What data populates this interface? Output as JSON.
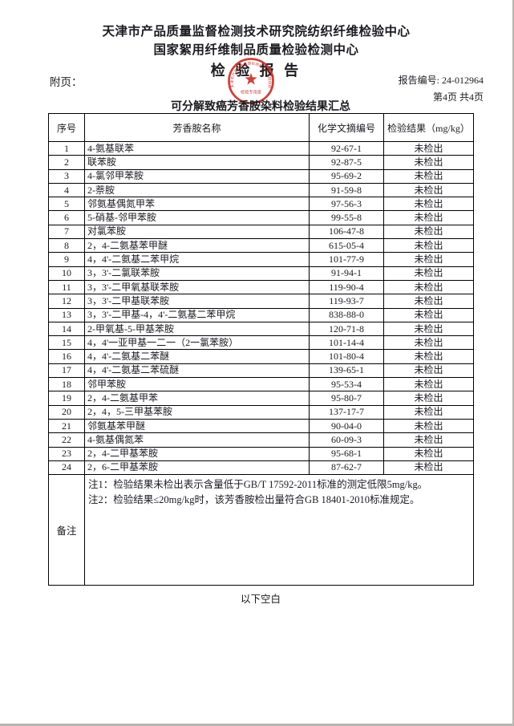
{
  "page": {
    "org_line1": "天津市产品质量监督检测技术研究院纺织纤维检验中心",
    "org_line2": "国家絮用纤维制品质量检验检测中心",
    "report_title": "检 验 报 告",
    "attachment_label": "附页：",
    "report_no_label": "报告编号: ",
    "report_no": "24-012964",
    "page_info": "第4页 共4页",
    "below_blank": "以下空白",
    "seal": {
      "color": "#c5342d",
      "ring_text": "天津市产品质量监督检测技术研究院纺织纤维检验中心",
      "bottom_text": "检验专用章"
    }
  },
  "table": {
    "title": "可分解致癌芳香胺染料检验结果汇总",
    "headers": [
      "序号",
      "芳香胺名称",
      "化学文摘编号",
      "检验结果（mg/kg）"
    ],
    "rows": [
      {
        "no": "1",
        "name": "4-氨基联苯",
        "cas": "92-67-1",
        "result": "未检出"
      },
      {
        "no": "2",
        "name": "联苯胺",
        "cas": "92-87-5",
        "result": "未检出"
      },
      {
        "no": "3",
        "name": "4-氯邻甲苯胺",
        "cas": "95-69-2",
        "result": "未检出"
      },
      {
        "no": "4",
        "name": "2-萘胺",
        "cas": "91-59-8",
        "result": "未检出"
      },
      {
        "no": "5",
        "name": "邻氨基偶氮甲苯",
        "cas": "97-56-3",
        "result": "未检出"
      },
      {
        "no": "6",
        "name": "5-硝基-邻甲苯胺",
        "cas": "99-55-8",
        "result": "未检出"
      },
      {
        "no": "7",
        "name": "对氯苯胺",
        "cas": "106-47-8",
        "result": "未检出"
      },
      {
        "no": "8",
        "name": "2，4-二氨基苯甲醚",
        "cas": "615-05-4",
        "result": "未检出"
      },
      {
        "no": "9",
        "name": "4，4'-二氨基二苯甲烷",
        "cas": "101-77-9",
        "result": "未检出"
      },
      {
        "no": "10",
        "name": "3，3'-二氯联苯胺",
        "cas": "91-94-1",
        "result": "未检出"
      },
      {
        "no": "11",
        "name": "3，3'-二甲氧基联苯胺",
        "cas": "119-90-4",
        "result": "未检出"
      },
      {
        "no": "12",
        "name": "3，3'-二甲基联苯胺",
        "cas": "119-93-7",
        "result": "未检出"
      },
      {
        "no": "13",
        "name": "3，3'-二甲基-4，4'-二氨基二苯甲烷",
        "cas": "838-88-0",
        "result": "未检出"
      },
      {
        "no": "14",
        "name": "2-甲氧基-5-甲基苯胺",
        "cas": "120-71-8",
        "result": "未检出"
      },
      {
        "no": "15",
        "name": "4，4'一亚甲基一二一（2一氯苯胺）",
        "cas": "101-14-4",
        "result": "未检出"
      },
      {
        "no": "16",
        "name": "4，4'-二氨基二苯醚",
        "cas": "101-80-4",
        "result": "未检出"
      },
      {
        "no": "17",
        "name": "4，4'-二氨基二苯硫醚",
        "cas": "139-65-1",
        "result": "未检出"
      },
      {
        "no": "18",
        "name": "邻甲苯胺",
        "cas": "95-53-4",
        "result": "未检出"
      },
      {
        "no": "19",
        "name": "2，4-二氨基甲苯",
        "cas": "95-80-7",
        "result": "未检出"
      },
      {
        "no": "20",
        "name": "2，4，5-三甲基苯胺",
        "cas": "137-17-7",
        "result": "未检出"
      },
      {
        "no": "21",
        "name": "邻氨基苯甲醚",
        "cas": "90-04-0",
        "result": "未检出"
      },
      {
        "no": "22",
        "name": "4-氨基偶氮苯",
        "cas": "60-09-3",
        "result": "未检出"
      },
      {
        "no": "23",
        "name": "2，4-二甲基苯胺",
        "cas": "95-68-1",
        "result": "未检出"
      },
      {
        "no": "24",
        "name": "2，6-二甲基苯胺",
        "cas": "87-62-7",
        "result": "未检出"
      }
    ],
    "remark_label": "备注",
    "notes": [
      "注1：检验结果未检出表示含量低于GB/T 17592-2011标准的测定低限5mg/kg。",
      "注2：检验结果≤20mg/kg时，该芳香胺检出量符合GB 18401-2010标准规定。"
    ]
  }
}
